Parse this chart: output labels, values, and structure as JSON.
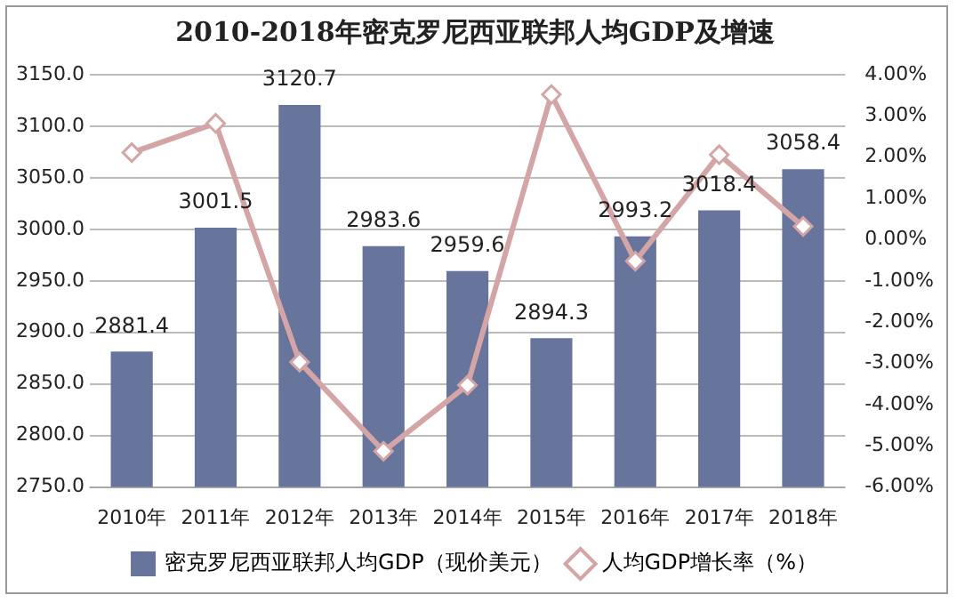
{
  "chart_data": {
    "type": "bar",
    "title": "2010-2018年密克罗尼西亚联邦人均GDP及增速",
    "categories": [
      "2010年",
      "2011年",
      "2012年",
      "2013年",
      "2014年",
      "2015年",
      "2016年",
      "2017年",
      "2018年"
    ],
    "series": [
      {
        "name": "密克罗尼西亚联邦人均GDP（现价美元）",
        "color": "#67749b",
        "values": [
          2881.4,
          3001.5,
          3120.7,
          2983.6,
          2959.6,
          2894.3,
          2993.2,
          3018.4,
          3058.4
        ],
        "value_labels": [
          "2881.4",
          "3001.5",
          "3120.7",
          "2983.6",
          "2959.6",
          "2894.3",
          "2993.2",
          "3018.4",
          "3058.4"
        ]
      },
      {
        "name": "人均GDP增长率（%）",
        "type": "line",
        "axis": "y2",
        "color": "#d3a5a6",
        "marker": "diamond",
        "values": [
          2.11,
          2.82,
          -2.97,
          -5.13,
          -3.53,
          3.52,
          -0.52,
          2.06,
          0.32
        ]
      }
    ],
    "ylim": [
      2750,
      3150
    ],
    "yticks": [
      {
        "value": 2750,
        "label": "2750.0"
      },
      {
        "value": 2800,
        "label": "2800.0"
      },
      {
        "value": 2850,
        "label": "2850.0"
      },
      {
        "value": 2900,
        "label": "2900.0"
      },
      {
        "value": 2950,
        "label": "2950.0"
      },
      {
        "value": 3000,
        "label": "3000.0"
      },
      {
        "value": 3050,
        "label": "3050.0"
      },
      {
        "value": 3100,
        "label": "3100.0"
      },
      {
        "value": 3150,
        "label": "3150.0"
      }
    ],
    "y2lim": [
      -6,
      4
    ],
    "y2ticks": [
      {
        "value": -6,
        "label": "-6.00%"
      },
      {
        "value": -5,
        "label": "-5.00%"
      },
      {
        "value": -4,
        "label": "-4.00%"
      },
      {
        "value": -3,
        "label": "-3.00%"
      },
      {
        "value": -2,
        "label": "-2.00%"
      },
      {
        "value": -1,
        "label": "-1.00%"
      },
      {
        "value": 0,
        "label": "0.00%"
      },
      {
        "value": 1,
        "label": "1.00%"
      },
      {
        "value": 2,
        "label": "2.00%"
      },
      {
        "value": 3,
        "label": "3.00%"
      },
      {
        "value": 4,
        "label": "4.00%"
      }
    ],
    "grid": "y",
    "legend": "bottom"
  }
}
